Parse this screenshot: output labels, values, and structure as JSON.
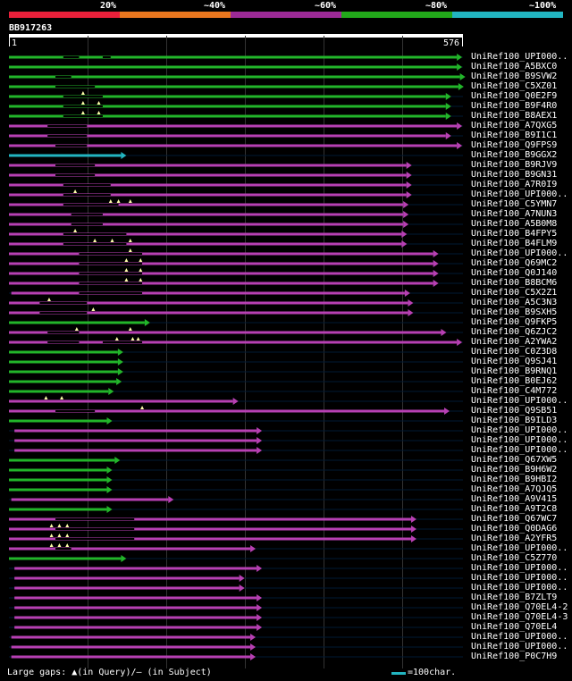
{
  "header": {
    "percent_labels": [
      "20%",
      "~40%",
      "~60%",
      "~80%",
      "~100%"
    ],
    "legend_colors": [
      "#e8203a",
      "#e8761e",
      "#9c2a96",
      "#22a81a",
      "#22b5c1"
    ]
  },
  "query": {
    "id": "BB917263",
    "start_label": "1",
    "end_label": "576",
    "length": 576
  },
  "colors": {
    "green": "#22b52a",
    "magenta": "#b740b3",
    "cyan": "#22b5c1",
    "gap_marker": "#ffffaa",
    "background": "#000000",
    "track": "#001a33"
  },
  "hits": [
    {
      "label": "UniRef100_UPI000..",
      "color": "green",
      "start": 1,
      "end": 576,
      "gaps": [
        {
          "from": 70,
          "to": 90
        },
        {
          "from": 120,
          "to": 130
        }
      ],
      "markers": []
    },
    {
      "label": "UniRef100_A5BXC0",
      "color": "green",
      "start": 1,
      "end": 576,
      "gaps": [],
      "markers": []
    },
    {
      "label": "UniRef100_B9SVW2",
      "color": "green",
      "start": 1,
      "end": 580,
      "gaps": [
        {
          "from": 60,
          "to": 80
        }
      ],
      "markers": []
    },
    {
      "label": "UniRef100_C5XZ01",
      "color": "green",
      "start": 1,
      "end": 578,
      "gaps": [
        {
          "from": 60,
          "to": 110
        }
      ],
      "markers": []
    },
    {
      "label": "UniRef100_Q0E2F9",
      "color": "green",
      "start": 1,
      "end": 562,
      "gaps": [
        {
          "from": 70,
          "to": 120
        }
      ],
      "markers": [
        95
      ]
    },
    {
      "label": "UniRef100_B9F4R0",
      "color": "green",
      "start": 1,
      "end": 562,
      "gaps": [
        {
          "from": 70,
          "to": 120
        }
      ],
      "markers": [
        95,
        115
      ]
    },
    {
      "label": "UniRef100_B8AEX1",
      "color": "green",
      "start": 1,
      "end": 562,
      "gaps": [
        {
          "from": 70,
          "to": 120
        }
      ],
      "markers": [
        95,
        115
      ]
    },
    {
      "label": "UniRef100_A7QXG5",
      "color": "magenta",
      "start": 1,
      "end": 576,
      "gaps": [
        {
          "from": 50,
          "to": 100
        }
      ],
      "markers": []
    },
    {
      "label": "UniRef100_B9I1C1",
      "color": "magenta",
      "start": 1,
      "end": 562,
      "gaps": [
        {
          "from": 50,
          "to": 100
        }
      ],
      "markers": []
    },
    {
      "label": "UniRef100_Q9FPS9",
      "color": "magenta",
      "start": 1,
      "end": 576,
      "gaps": [
        {
          "from": 60,
          "to": 100
        }
      ],
      "markers": []
    },
    {
      "label": "UniRef100_B9GGX2",
      "color": "cyan",
      "start": 1,
      "end": 150,
      "gaps": [],
      "markers": []
    },
    {
      "label": "UniRef100_B9RJV9",
      "color": "magenta",
      "start": 1,
      "end": 512,
      "gaps": [
        {
          "from": 60,
          "to": 110
        }
      ],
      "markers": []
    },
    {
      "label": "UniRef100_B9GN31",
      "color": "magenta",
      "start": 1,
      "end": 512,
      "gaps": [
        {
          "from": 60,
          "to": 110
        }
      ],
      "markers": []
    },
    {
      "label": "UniRef100_A7R0I9",
      "color": "magenta",
      "start": 1,
      "end": 512,
      "gaps": [
        {
          "from": 70,
          "to": 130
        }
      ],
      "markers": []
    },
    {
      "label": "UniRef100_UPI000..",
      "color": "magenta",
      "start": 1,
      "end": 512,
      "gaps": [
        {
          "from": 70,
          "to": 130
        }
      ],
      "markers": [
        85
      ]
    },
    {
      "label": "UniRef100_C5YMN7",
      "color": "magenta",
      "start": 1,
      "end": 508,
      "gaps": [
        {
          "from": 70,
          "to": 140
        }
      ],
      "markers": [
        130,
        140,
        155
      ]
    },
    {
      "label": "UniRef100_A7NUN3",
      "color": "magenta",
      "start": 1,
      "end": 508,
      "gaps": [
        {
          "from": 80,
          "to": 120
        }
      ],
      "markers": []
    },
    {
      "label": "UniRef100_A5B0M8",
      "color": "magenta",
      "start": 1,
      "end": 508,
      "gaps": [
        {
          "from": 80,
          "to": 120
        }
      ],
      "markers": []
    },
    {
      "label": "UniRef100_B4FPY5",
      "color": "magenta",
      "start": 1,
      "end": 506,
      "gaps": [
        {
          "from": 70,
          "to": 150
        }
      ],
      "markers": [
        85
      ]
    },
    {
      "label": "UniRef100_B4FLM9",
      "color": "magenta",
      "start": 1,
      "end": 506,
      "gaps": [
        {
          "from": 70,
          "to": 150
        }
      ],
      "markers": [
        110,
        132,
        155
      ]
    },
    {
      "label": "UniRef100_UPI000..",
      "color": "magenta",
      "start": 1,
      "end": 546,
      "gaps": [
        {
          "from": 90,
          "to": 170
        }
      ],
      "markers": [
        155
      ]
    },
    {
      "label": "UniRef100_Q69MC2",
      "color": "magenta",
      "start": 1,
      "end": 546,
      "gaps": [
        {
          "from": 90,
          "to": 170
        }
      ],
      "markers": [
        150,
        168
      ]
    },
    {
      "label": "UniRef100_Q0J140",
      "color": "magenta",
      "start": 1,
      "end": 546,
      "gaps": [
        {
          "from": 90,
          "to": 170
        }
      ],
      "markers": [
        150,
        168
      ]
    },
    {
      "label": "UniRef100_B8BCM6",
      "color": "magenta",
      "start": 1,
      "end": 546,
      "gaps": [
        {
          "from": 90,
          "to": 170
        }
      ],
      "markers": [
        150,
        168
      ]
    },
    {
      "label": "UniRef100_C5X2Z1",
      "color": "magenta",
      "start": 4,
      "end": 510,
      "gaps": [
        {
          "from": 90,
          "to": 170
        }
      ],
      "markers": []
    },
    {
      "label": "UniRef100_A5C3N3",
      "color": "magenta",
      "start": 1,
      "end": 514,
      "gaps": [
        {
          "from": 40,
          "to": 100
        }
      ],
      "markers": [
        52
      ]
    },
    {
      "label": "UniRef100_B9SXH5",
      "color": "magenta",
      "start": 1,
      "end": 514,
      "gaps": [
        {
          "from": 40,
          "to": 100
        }
      ],
      "markers": [
        108
      ]
    },
    {
      "label": "UniRef100_Q9FKP5",
      "color": "green",
      "start": 1,
      "end": 180,
      "gaps": [],
      "markers": []
    },
    {
      "label": "UniRef100_Q6ZJC2",
      "color": "magenta",
      "start": 1,
      "end": 556,
      "gaps": [
        {
          "from": 50,
          "to": 90
        }
      ],
      "markers": [
        87,
        155
      ]
    },
    {
      "label": "UniRef100_A2YWA2",
      "color": "magenta",
      "start": 1,
      "end": 576,
      "gaps": [
        {
          "from": 50,
          "to": 90
        },
        {
          "from": 120,
          "to": 170
        }
      ],
      "markers": [
        138,
        158,
        165
      ]
    },
    {
      "label": "UniRef100_C0Z3D8",
      "color": "green",
      "start": 1,
      "end": 146,
      "gaps": [],
      "markers": []
    },
    {
      "label": "UniRef100_Q9SJ41",
      "color": "green",
      "start": 1,
      "end": 146,
      "gaps": [],
      "markers": []
    },
    {
      "label": "UniRef100_B9RNQ1",
      "color": "green",
      "start": 1,
      "end": 146,
      "gaps": [],
      "markers": []
    },
    {
      "label": "UniRef100_B0EJ62",
      "color": "green",
      "start": 1,
      "end": 144,
      "gaps": [],
      "markers": []
    },
    {
      "label": "UniRef100_C4M772",
      "color": "green",
      "start": 1,
      "end": 134,
      "gaps": [],
      "markers": []
    },
    {
      "label": "UniRef100_UPI000..",
      "color": "magenta",
      "start": 1,
      "end": 292,
      "gaps": [],
      "markers": [
        48,
        68
      ]
    },
    {
      "label": "UniRef100_Q9SB51",
      "color": "magenta",
      "start": 1,
      "end": 560,
      "gaps": [
        {
          "from": 60,
          "to": 110
        }
      ],
      "markers": [
        170
      ]
    },
    {
      "label": "UniRef100_B9ILD3",
      "color": "green",
      "start": 1,
      "end": 132,
      "gaps": [],
      "markers": []
    },
    {
      "label": "UniRef100_UPI000..",
      "color": "magenta",
      "start": 8,
      "end": 322,
      "gaps": [],
      "markers": []
    },
    {
      "label": "UniRef100_UPI000..",
      "color": "magenta",
      "start": 8,
      "end": 322,
      "gaps": [],
      "markers": []
    },
    {
      "label": "UniRef100_UPI000..",
      "color": "magenta",
      "start": 8,
      "end": 322,
      "gaps": [],
      "markers": []
    },
    {
      "label": "UniRef100_Q67XW5",
      "color": "green",
      "start": 1,
      "end": 142,
      "gaps": [],
      "markers": []
    },
    {
      "label": "UniRef100_B9H6W2",
      "color": "green",
      "start": 1,
      "end": 132,
      "gaps": [],
      "markers": []
    },
    {
      "label": "UniRef100_B9HBI2",
      "color": "green",
      "start": 1,
      "end": 132,
      "gaps": [],
      "markers": []
    },
    {
      "label": "UniRef100_A7QJQ5",
      "color": "green",
      "start": 1,
      "end": 132,
      "gaps": [],
      "markers": []
    },
    {
      "label": "UniRef100_A9V415",
      "color": "magenta",
      "start": 4,
      "end": 210,
      "gaps": [],
      "markers": []
    },
    {
      "label": "UniRef100_A9T2C8",
      "color": "green",
      "start": 1,
      "end": 132,
      "gaps": [],
      "markers": []
    },
    {
      "label": "UniRef100_Q67WC7",
      "color": "magenta",
      "start": 1,
      "end": 518,
      "gaps": [
        {
          "from": 60,
          "to": 160
        }
      ],
      "markers": []
    },
    {
      "label": "UniRef100_Q0DAG6",
      "color": "magenta",
      "start": 1,
      "end": 518,
      "gaps": [
        {
          "from": 60,
          "to": 160
        }
      ],
      "markers": [
        55,
        65,
        75
      ]
    },
    {
      "label": "UniRef100_A2YFR5",
      "color": "magenta",
      "start": 1,
      "end": 518,
      "gaps": [
        {
          "from": 60,
          "to": 160
        }
      ],
      "markers": [
        55,
        65,
        75
      ]
    },
    {
      "label": "UniRef100_UPI000..",
      "color": "magenta",
      "start": 1,
      "end": 314,
      "gaps": [
        {
          "from": 60,
          "to": 80
        }
      ],
      "markers": [
        55,
        65,
        75
      ]
    },
    {
      "label": "UniRef100_C5Z770",
      "color": "green",
      "start": 1,
      "end": 150,
      "gaps": [],
      "markers": []
    },
    {
      "label": "UniRef100_UPI000..",
      "color": "magenta",
      "start": 8,
      "end": 322,
      "gaps": [],
      "markers": []
    },
    {
      "label": "UniRef100_UPI000..",
      "color": "magenta",
      "start": 8,
      "end": 300,
      "gaps": [],
      "markers": []
    },
    {
      "label": "UniRef100_UPI000..",
      "color": "magenta",
      "start": 8,
      "end": 300,
      "gaps": [],
      "markers": []
    },
    {
      "label": "UniRef100_B7ZLT9",
      "color": "magenta",
      "start": 8,
      "end": 322,
      "gaps": [],
      "markers": []
    },
    {
      "label": "UniRef100_Q70EL4-2",
      "color": "magenta",
      "start": 8,
      "end": 322,
      "gaps": [],
      "markers": []
    },
    {
      "label": "UniRef100_Q70EL4-3",
      "color": "magenta",
      "start": 8,
      "end": 322,
      "gaps": [],
      "markers": []
    },
    {
      "label": "UniRef100_Q70EL4",
      "color": "magenta",
      "start": 8,
      "end": 322,
      "gaps": [],
      "markers": []
    },
    {
      "label": "UniRef100_UPI000..",
      "color": "magenta",
      "start": 4,
      "end": 314,
      "gaps": [],
      "markers": []
    },
    {
      "label": "UniRef100_UPI000..",
      "color": "magenta",
      "start": 4,
      "end": 314,
      "gaps": [],
      "markers": []
    },
    {
      "label": "UniRef100_P0C7H9",
      "color": "magenta",
      "start": 4,
      "end": 314,
      "gaps": [],
      "markers": []
    }
  ],
  "footer": {
    "gaps_legend": "Large gaps: ▲(in Query)/– (in Subject)",
    "scale_legend": "=100char."
  }
}
